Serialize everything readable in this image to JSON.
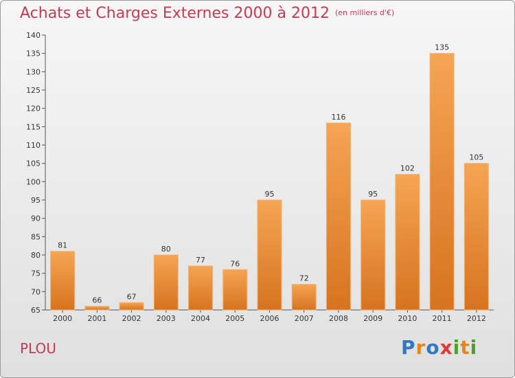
{
  "header": {
    "title": "Achats et Charges Externes 2000 à 2012",
    "unit": "(en milliers d'€)"
  },
  "footer": {
    "commune": "PLOU",
    "logo": "Proxiti"
  },
  "colors": {
    "title": "#c83a52",
    "bar_light": "#f5a553",
    "bar_dark": "#d7731f"
  },
  "chart_data": {
    "type": "bar",
    "title": "Achats et Charges Externes 2000 à 2012",
    "categories": [
      "2000",
      "2001",
      "2002",
      "2003",
      "2004",
      "2005",
      "2006",
      "2007",
      "2008",
      "2009",
      "2010",
      "2011",
      "2012"
    ],
    "values": [
      81,
      66,
      67,
      80,
      77,
      76,
      95,
      72,
      116,
      95,
      102,
      135,
      105
    ],
    "ylim": [
      65,
      140
    ],
    "yticks": [
      65,
      70,
      75,
      80,
      85,
      90,
      95,
      100,
      105,
      110,
      115,
      120,
      125,
      130,
      135,
      140
    ],
    "grid": false
  }
}
